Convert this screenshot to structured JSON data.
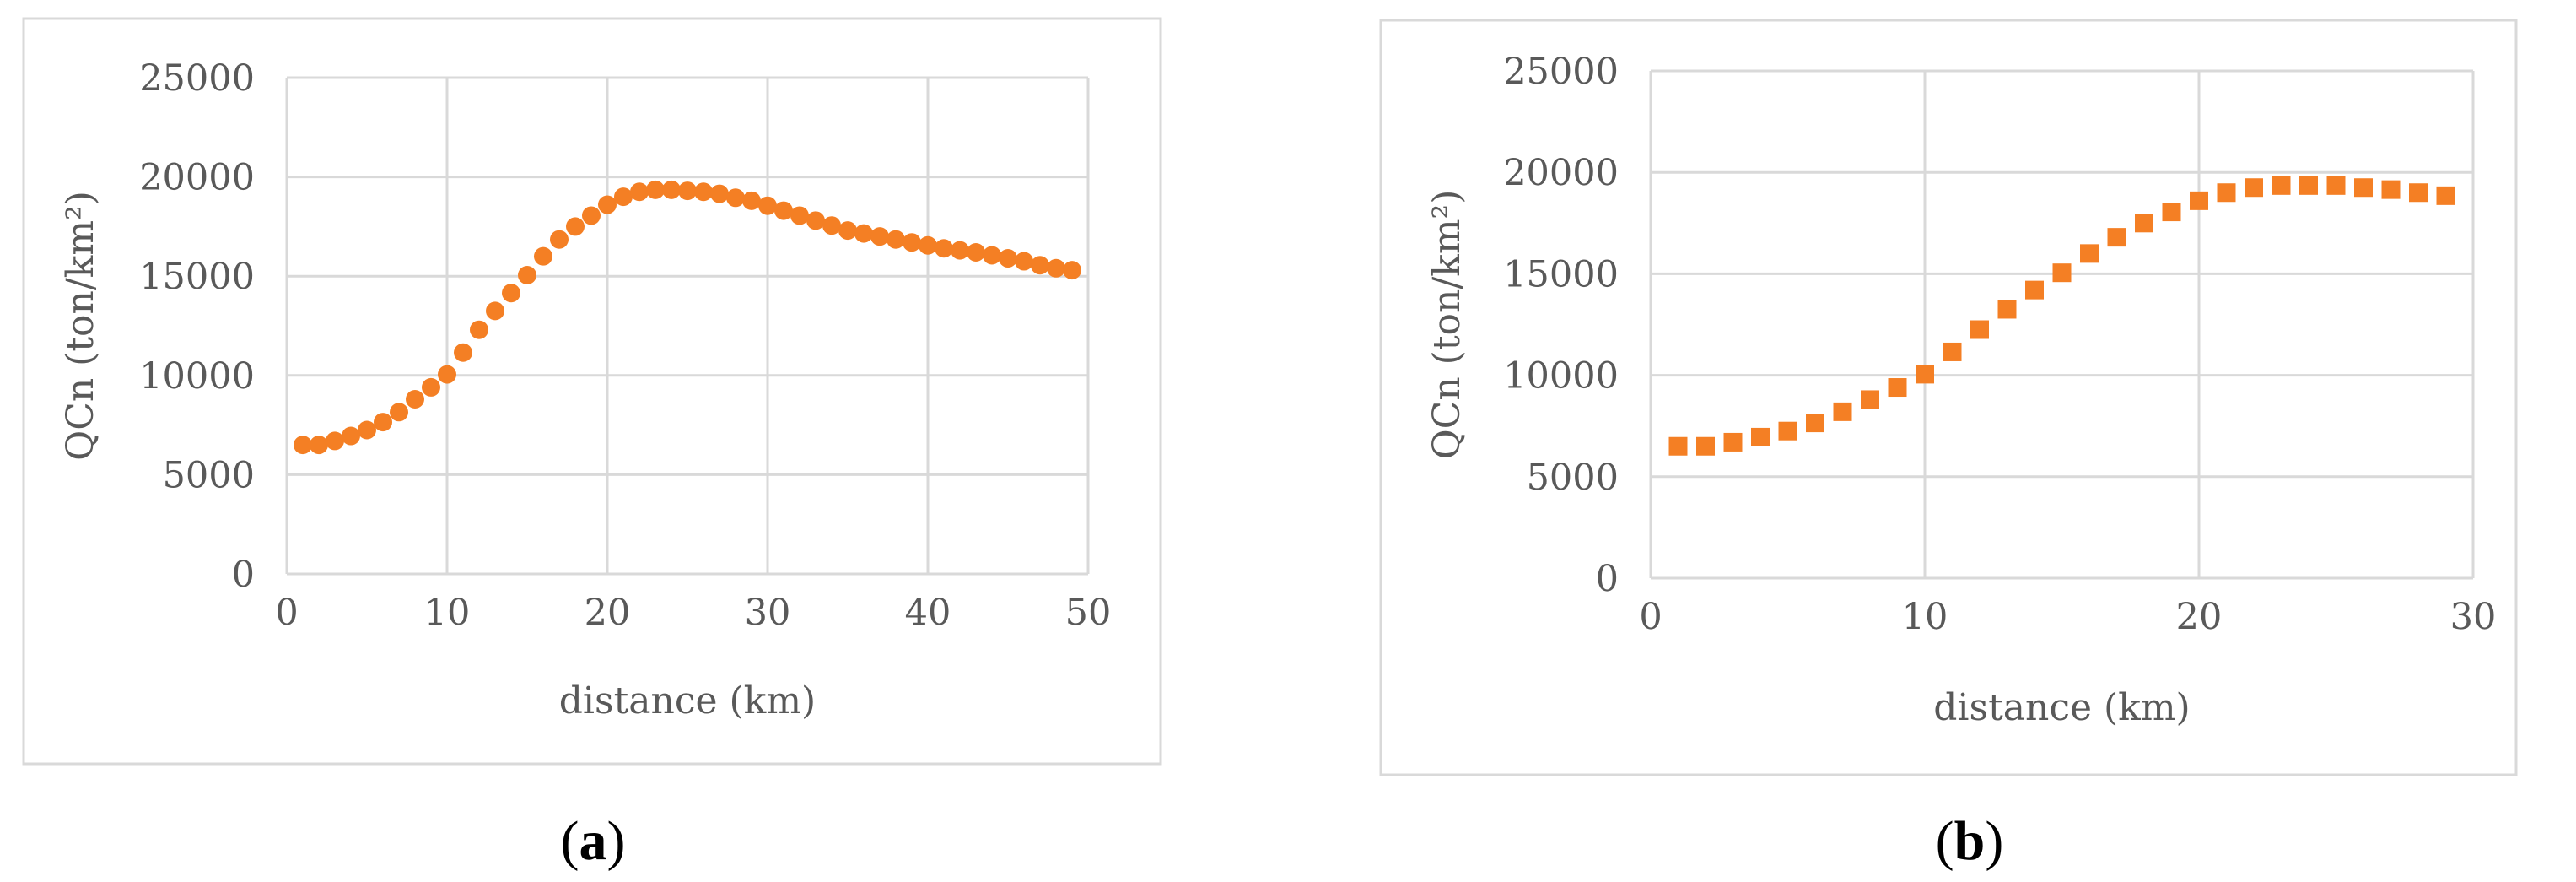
{
  "chart_data": [
    {
      "type": "scatter",
      "panel_label": "a",
      "xlabel": "distance (km)",
      "ylabel": "QCn (ton/km²)",
      "xlim": [
        0,
        50
      ],
      "ylim": [
        0,
        25000
      ],
      "xticks": [
        0,
        10,
        20,
        30,
        40,
        50
      ],
      "yticks": [
        0,
        5000,
        10000,
        15000,
        20000,
        25000
      ],
      "grid": true,
      "marker": "circle",
      "color": "#F47F24",
      "x": [
        1,
        2,
        3,
        4,
        5,
        6,
        7,
        8,
        9,
        10,
        11,
        12,
        13,
        14,
        15,
        16,
        17,
        18,
        19,
        20,
        21,
        22,
        23,
        24,
        25,
        26,
        27,
        28,
        29,
        30,
        31,
        32,
        33,
        34,
        35,
        36,
        37,
        38,
        39,
        40,
        41,
        42,
        43,
        44,
        45,
        46,
        47,
        48,
        49
      ],
      "y": [
        6500,
        6500,
        6700,
        6950,
        7250,
        7650,
        8150,
        8800,
        9400,
        10050,
        11150,
        12300,
        13250,
        14150,
        15050,
        16000,
        16850,
        17500,
        18050,
        18600,
        19000,
        19250,
        19350,
        19350,
        19300,
        19250,
        19150,
        18950,
        18800,
        18550,
        18300,
        18050,
        17800,
        17550,
        17300,
        17150,
        17000,
        16850,
        16700,
        16550,
        16400,
        16300,
        16200,
        16050,
        15900,
        15750,
        15550,
        15400,
        15300
      ]
    },
    {
      "type": "scatter",
      "panel_label": "b",
      "xlabel": "distance (km)",
      "ylabel": "QCn (ton/km²)",
      "xlim": [
        0,
        30
      ],
      "ylim": [
        0,
        25000
      ],
      "xticks": [
        0,
        10,
        20,
        30
      ],
      "yticks": [
        0,
        5000,
        10000,
        15000,
        20000,
        25000
      ],
      "grid": true,
      "marker": "square",
      "color": "#F47F24",
      "x": [
        1,
        2,
        3,
        4,
        5,
        6,
        7,
        8,
        9,
        10,
        11,
        12,
        13,
        14,
        15,
        16,
        17,
        18,
        19,
        20,
        21,
        22,
        23,
        24,
        25,
        26,
        27,
        28,
        29
      ],
      "y": [
        6500,
        6500,
        6700,
        6950,
        7250,
        7650,
        8200,
        8800,
        9400,
        10050,
        11150,
        12250,
        13250,
        14200,
        15050,
        16000,
        16800,
        17500,
        18050,
        18600,
        19000,
        19250,
        19350,
        19350,
        19350,
        19250,
        19150,
        19000,
        18850
      ]
    }
  ],
  "captions": [
    {
      "open": "(",
      "letter": "a",
      "close": ")"
    },
    {
      "open": "(",
      "letter": "b",
      "close": ")"
    }
  ]
}
